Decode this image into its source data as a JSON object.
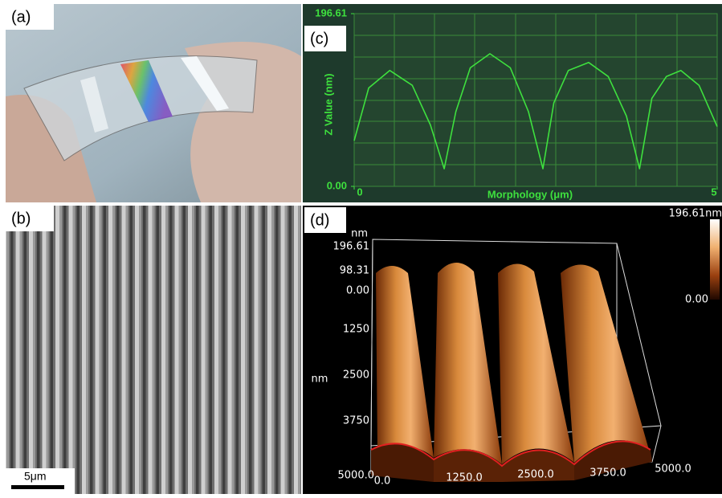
{
  "panels": {
    "a": {
      "label": "(a)"
    },
    "b": {
      "label": "(b)",
      "scale_bar": "5μm"
    },
    "c": {
      "label": "(c)",
      "chart_data": {
        "type": "line",
        "x_label": "Morphology (μm)",
        "y_label": "Z Value (nm)",
        "x": [
          0,
          0.2,
          0.49,
          0.8,
          1.05,
          1.24,
          1.4,
          1.6,
          1.87,
          2.15,
          2.4,
          2.6,
          2.75,
          2.95,
          3.23,
          3.5,
          3.75,
          3.93,
          4.1,
          4.3,
          4.5,
          4.75,
          5
        ],
        "values": [
          52,
          112,
          132,
          115,
          70,
          20,
          85,
          135,
          151,
          135,
          85,
          20,
          95,
          132,
          141,
          125,
          80,
          20,
          100,
          125,
          132,
          115,
          68
        ],
        "color": "#3ee03e",
        "xlim": [
          0,
          5
        ],
        "xticks": [
          0,
          5
        ],
        "ylim": [
          0,
          196.61
        ],
        "yticks": [
          {
            "value": 0,
            "label": "0.00"
          },
          196.61
        ]
      }
    },
    "d": {
      "label": "(d)",
      "colorbar": {
        "max_label": "196.61nm",
        "min_label": "0.00"
      },
      "z_axis": {
        "unit": "nm",
        "labels": [
          "196.61",
          "98.31",
          "0.00"
        ]
      },
      "y_axis": {
        "unit": "nm",
        "labels": [
          "1250",
          "2500",
          "3750",
          "5000.0"
        ]
      },
      "x_axis": {
        "labels": [
          "0.0",
          "1250.0",
          "2500.0",
          "3750.0",
          "5000.0"
        ]
      }
    }
  }
}
